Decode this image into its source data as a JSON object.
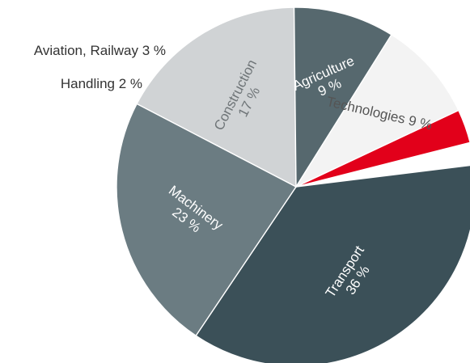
{
  "chart_data": {
    "type": "pie",
    "title": "",
    "unit": "%",
    "slices": [
      {
        "label": "Transport",
        "value": 36,
        "text": "36 %",
        "color": "#3b5058",
        "text_color": "#ffffff",
        "placement": "inside"
      },
      {
        "label": "Machinery",
        "value": 23,
        "text": "23 %",
        "color": "#6b7c82",
        "text_color": "#ffffff",
        "placement": "inside"
      },
      {
        "label": "Construction",
        "value": 17,
        "text": "17 %",
        "color": "#d0d3d5",
        "text_color": "#6f7578",
        "placement": "inside"
      },
      {
        "label": "Agriculture",
        "value": 9,
        "text": "9 %",
        "color": "#56686e",
        "text_color": "#ffffff",
        "placement": "inside"
      },
      {
        "label": "Technologies",
        "value": 9,
        "text": "9 %",
        "color": "#f3f3f3",
        "text_color": "#555555",
        "placement": "inside-single-line"
      },
      {
        "label": "Handling",
        "value": 2,
        "text": "2 %",
        "color": "#a8adb0",
        "text_color": "#333333",
        "placement": "outside"
      },
      {
        "label": "Aviation, Railway",
        "value": 3,
        "text": "3 %",
        "color": "#e2001a",
        "text_color": "#333333",
        "placement": "outside"
      }
    ]
  }
}
